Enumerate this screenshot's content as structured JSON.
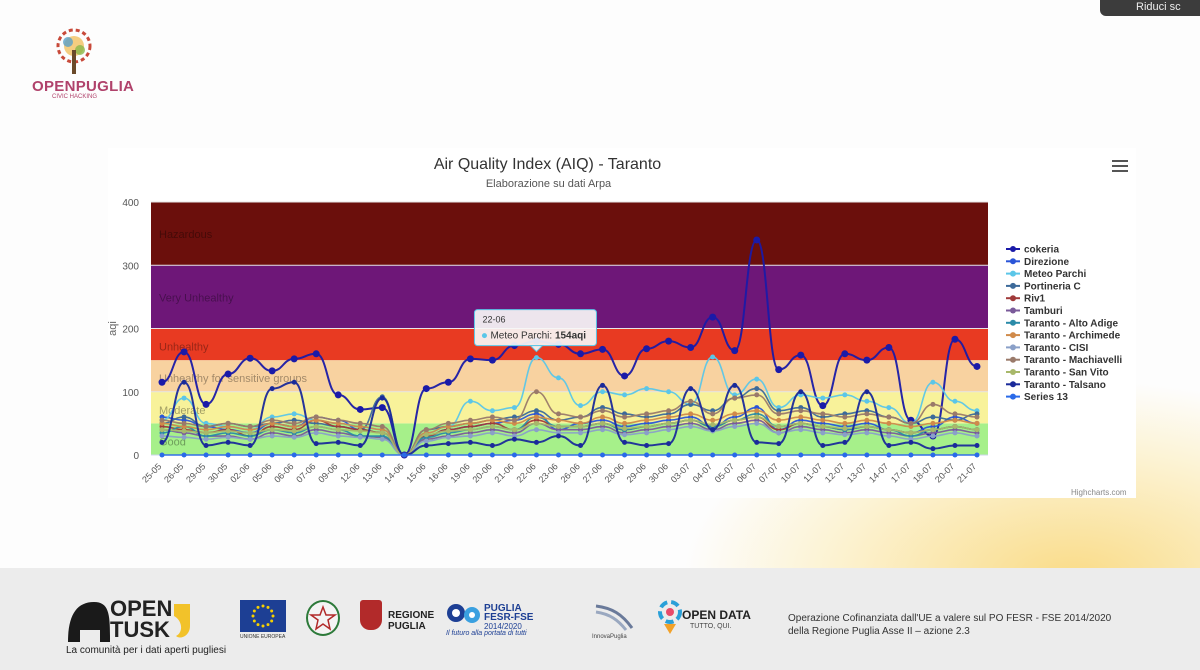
{
  "window": {
    "top_button_label": "Riduci sc"
  },
  "brand": {
    "name": "OPENPUGLIA",
    "tagline": "CIVIC HACKING"
  },
  "chart_data": {
    "type": "line",
    "title": "Air Quality Index (AIQ) - Taranto",
    "subtitle": "Elaborazione su dati Arpa",
    "ylabel": "aqi",
    "ylim": [
      0,
      400
    ],
    "yticks": [
      0,
      100,
      200,
      300,
      400
    ],
    "categories": [
      "25-05",
      "26-05",
      "29-05",
      "30-05",
      "02-06",
      "05-06",
      "06-06",
      "07-06",
      "09-06",
      "12-06",
      "13-06",
      "14-06",
      "15-06",
      "16-06",
      "19-06",
      "20-06",
      "21-06",
      "22-06",
      "23-06",
      "26-06",
      "27-06",
      "28-06",
      "29-06",
      "30-06",
      "03-07",
      "04-07",
      "05-07",
      "06-07",
      "07-07",
      "10-07",
      "11-07",
      "12-07",
      "13-07",
      "14-07",
      "17-07",
      "18-07",
      "20-07",
      "21-07"
    ],
    "bands": [
      {
        "label": "Good",
        "from": 0,
        "to": 50,
        "color": "#a6f08a"
      },
      {
        "label": "Moderate",
        "from": 50,
        "to": 100,
        "color": "#f8f29a"
      },
      {
        "label": "Unhealthy for sensitive groups",
        "from": 100,
        "to": 150,
        "color": "#f8d2a0"
      },
      {
        "label": "Unhealthy",
        "from": 150,
        "to": 200,
        "color": "#e83a22"
      },
      {
        "label": "Very Unhealthy",
        "from": 200,
        "to": 300,
        "color": "#6e1778"
      },
      {
        "label": "Hazardous",
        "from": 300,
        "to": 400,
        "color": "#6b0f0c"
      }
    ],
    "legend_position": "right",
    "series": [
      {
        "name": "cokeria",
        "color": "#1a1aa8",
        "values": [
          115,
          163,
          80,
          128,
          153,
          133,
          152,
          160,
          95,
          72,
          75,
          0,
          105,
          115,
          152,
          150,
          173,
          180,
          175,
          160,
          167,
          125,
          168,
          180,
          170,
          218,
          165,
          340,
          135,
          158,
          78,
          160,
          150,
          170,
          55,
          30,
          183,
          140
        ]
      },
      {
        "name": "Direzione",
        "color": "#2a55d8",
        "values": [
          60,
          55,
          45,
          40,
          35,
          50,
          45,
          60,
          55,
          40,
          35,
          0,
          30,
          40,
          45,
          50,
          55,
          65,
          40,
          50,
          55,
          45,
          50,
          55,
          60,
          45,
          60,
          75,
          40,
          55,
          50,
          45,
          50,
          40,
          35,
          45,
          60,
          50
        ]
      },
      {
        "name": "Meteo Parchi",
        "color": "#5bc6e8",
        "values": [
          55,
          90,
          50,
          45,
          40,
          60,
          65,
          55,
          50,
          45,
          40,
          0,
          35,
          45,
          85,
          70,
          75,
          154,
          122,
          78,
          100,
          95,
          105,
          100,
          80,
          155,
          95,
          120,
          75,
          95,
          90,
          95,
          85,
          75,
          50,
          115,
          85,
          70
        ]
      },
      {
        "name": "Portineria C",
        "color": "#3c6a9a",
        "values": [
          50,
          60,
          45,
          50,
          45,
          50,
          55,
          50,
          45,
          40,
          92,
          0,
          40,
          45,
          50,
          55,
          60,
          70,
          55,
          60,
          75,
          65,
          60,
          65,
          80,
          70,
          90,
          105,
          70,
          75,
          60,
          65,
          70,
          60,
          50,
          60,
          55,
          65
        ]
      },
      {
        "name": "Riv1",
        "color": "#a03a3a",
        "values": [
          45,
          40,
          35,
          40,
          30,
          45,
          40,
          55,
          45,
          40,
          35,
          0,
          30,
          40,
          45,
          50,
          40,
          55,
          45,
          45,
          50,
          40,
          45,
          50,
          55,
          45,
          55,
          60,
          40,
          50,
          45,
          40,
          45,
          40,
          35,
          40,
          45,
          40
        ]
      },
      {
        "name": "Tamburi",
        "color": "#7a5a9a",
        "values": [
          40,
          35,
          30,
          30,
          25,
          35,
          30,
          40,
          35,
          30,
          28,
          0,
          25,
          30,
          35,
          40,
          35,
          50,
          40,
          40,
          45,
          35,
          40,
          45,
          50,
          40,
          50,
          55,
          35,
          45,
          40,
          35,
          40,
          35,
          30,
          35,
          40,
          35
        ]
      },
      {
        "name": "Taranto - Alto Adige",
        "color": "#2a8aa8",
        "values": [
          35,
          45,
          30,
          35,
          30,
          40,
          35,
          45,
          40,
          30,
          30,
          0,
          28,
          35,
          40,
          45,
          40,
          60,
          45,
          45,
          50,
          40,
          45,
          50,
          55,
          45,
          55,
          65,
          45,
          50,
          45,
          40,
          45,
          40,
          30,
          40,
          45,
          40
        ]
      },
      {
        "name": "Taranto - Archimede",
        "color": "#d08a4a",
        "values": [
          50,
          45,
          40,
          45,
          40,
          50,
          45,
          55,
          50,
          45,
          40,
          0,
          35,
          45,
          50,
          55,
          50,
          60,
          55,
          50,
          60,
          50,
          55,
          60,
          65,
          55,
          65,
          70,
          55,
          60,
          55,
          50,
          55,
          50,
          45,
          50,
          55,
          50
        ]
      },
      {
        "name": "Taranto - CISI",
        "color": "#8aa0c8",
        "values": [
          30,
          28,
          25,
          28,
          25,
          30,
          28,
          35,
          30,
          28,
          25,
          0,
          22,
          28,
          30,
          35,
          30,
          40,
          35,
          35,
          40,
          32,
          35,
          40,
          45,
          38,
          45,
          50,
          35,
          40,
          35,
          32,
          35,
          30,
          25,
          30,
          35,
          30
        ]
      },
      {
        "name": "Taranto - Machiavelli",
        "color": "#9a7a6a",
        "values": [
          55,
          50,
          45,
          50,
          45,
          55,
          50,
          60,
          55,
          50,
          45,
          0,
          40,
          50,
          55,
          60,
          55,
          100,
          65,
          60,
          70,
          60,
          65,
          70,
          85,
          65,
          90,
          95,
          65,
          70,
          65,
          60,
          65,
          60,
          50,
          80,
          65,
          60
        ]
      },
      {
        "name": "Taranto - San Vito",
        "color": "#a8b86a",
        "values": [
          40,
          38,
          35,
          38,
          35,
          40,
          38,
          45,
          40,
          38,
          35,
          0,
          32,
          38,
          40,
          45,
          40,
          50,
          45,
          45,
          50,
          42,
          45,
          50,
          55,
          48,
          55,
          60,
          45,
          50,
          45,
          42,
          45,
          40,
          35,
          40,
          45,
          40
        ]
      },
      {
        "name": "Taranto - Talsano",
        "color": "#1a2a9a",
        "values": [
          20,
          115,
          15,
          20,
          15,
          105,
          115,
          18,
          20,
          15,
          90,
          0,
          15,
          18,
          20,
          15,
          25,
          20,
          30,
          15,
          110,
          20,
          15,
          18,
          105,
          40,
          110,
          20,
          18,
          100,
          15,
          20,
          100,
          15,
          20,
          10,
          15,
          15
        ]
      },
      {
        "name": "Series 13",
        "color": "#2a6ae8",
        "values": [
          0,
          0,
          0,
          0,
          0,
          0,
          0,
          0,
          0,
          0,
          0,
          0,
          0,
          0,
          0,
          0,
          0,
          0,
          0,
          0,
          0,
          0,
          0,
          0,
          0,
          0,
          0,
          0,
          0,
          0,
          0,
          0,
          0,
          0,
          0,
          0,
          0,
          0
        ]
      }
    ],
    "tooltip": {
      "date": "22-06",
      "series": "Meteo Parchi",
      "value_text": "154aqi"
    },
    "credits": "Highcharts.com"
  },
  "footer": {
    "opentusk_line1": "OPEN",
    "opentusk_line2": "TUSK",
    "opentusk_tagline": "La comunità per i dati aperti pugliesi",
    "eu_label": "UNIONE EUROPEA",
    "regione_line1": "REGIONE",
    "regione_line2": "PUGLIA",
    "po_line1": "PUGLIA",
    "po_line2": "FESR-FSE",
    "po_line3": "2014/2020",
    "po_tagline": "Il futuro alla portata di tutti",
    "innova_label": "InnovaPuglia",
    "od_title": "OPEN DATA",
    "od_sub": "TUTTO, QUI.",
    "note_line1": "Operazione Cofinanziata dall'UE a valere sul PO FESR - FSE 2014/2020",
    "note_line2": "della Regione Puglia Asse II – azione 2.3"
  }
}
